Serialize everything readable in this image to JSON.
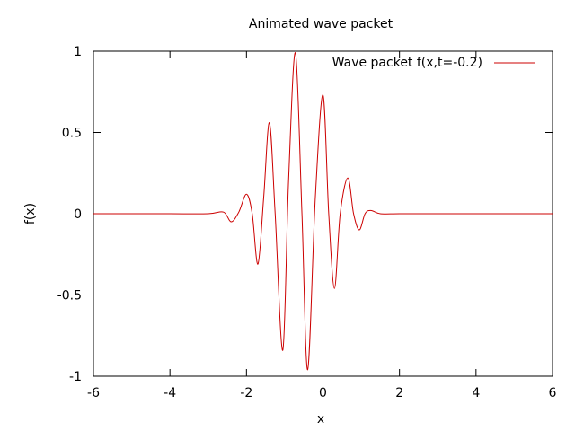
{
  "chart_data": {
    "type": "line",
    "title": "Animated wave packet",
    "xlabel": "x",
    "ylabel": "f(x)",
    "xlim": [
      -6,
      6
    ],
    "ylim": [
      -1,
      1
    ],
    "xticks": [
      -6,
      -4,
      -2,
      0,
      2,
      4,
      6
    ],
    "yticks": [
      -1,
      -0.5,
      0,
      0.5,
      1
    ],
    "xtick_labels": [
      "-6",
      "-4",
      "-2",
      "0",
      "2",
      "4",
      "6"
    ],
    "ytick_labels": [
      "-1",
      "-0.5",
      "0",
      "0.5",
      "1"
    ],
    "grid": false,
    "legend_position": "top-right",
    "series": [
      {
        "name": "Wave packet f(x,t=-0.2)",
        "color": "#cc0000",
        "points": [
          [
            -6.0,
            0.0
          ],
          [
            -5.0,
            0.0
          ],
          [
            -4.0,
            0.0
          ],
          [
            -3.0,
            0.0
          ],
          [
            -2.6,
            0.01
          ],
          [
            -2.4,
            -0.05
          ],
          [
            -2.2,
            0.01
          ],
          [
            -2.0,
            0.12
          ],
          [
            -1.85,
            0.0
          ],
          [
            -1.7,
            -0.31
          ],
          [
            -1.55,
            0.1
          ],
          [
            -1.4,
            0.56
          ],
          [
            -1.25,
            0.0
          ],
          [
            -1.05,
            -0.84
          ],
          [
            -0.9,
            0.2
          ],
          [
            -0.72,
            0.99
          ],
          [
            -0.55,
            0.0
          ],
          [
            -0.4,
            -0.96
          ],
          [
            -0.2,
            0.1
          ],
          [
            0.0,
            0.73
          ],
          [
            0.15,
            0.0
          ],
          [
            0.3,
            -0.46
          ],
          [
            0.45,
            0.0
          ],
          [
            0.65,
            0.22
          ],
          [
            0.8,
            0.0
          ],
          [
            0.95,
            -0.1
          ],
          [
            1.1,
            0.0
          ],
          [
            1.25,
            0.02
          ],
          [
            1.5,
            0.0
          ],
          [
            2.0,
            0.0
          ],
          [
            3.0,
            0.0
          ],
          [
            4.0,
            0.0
          ],
          [
            5.0,
            0.0
          ],
          [
            6.0,
            0.0
          ]
        ]
      }
    ]
  },
  "colors": {
    "background": "#ffffff",
    "axis": "#000000",
    "series": "#cc0000"
  }
}
